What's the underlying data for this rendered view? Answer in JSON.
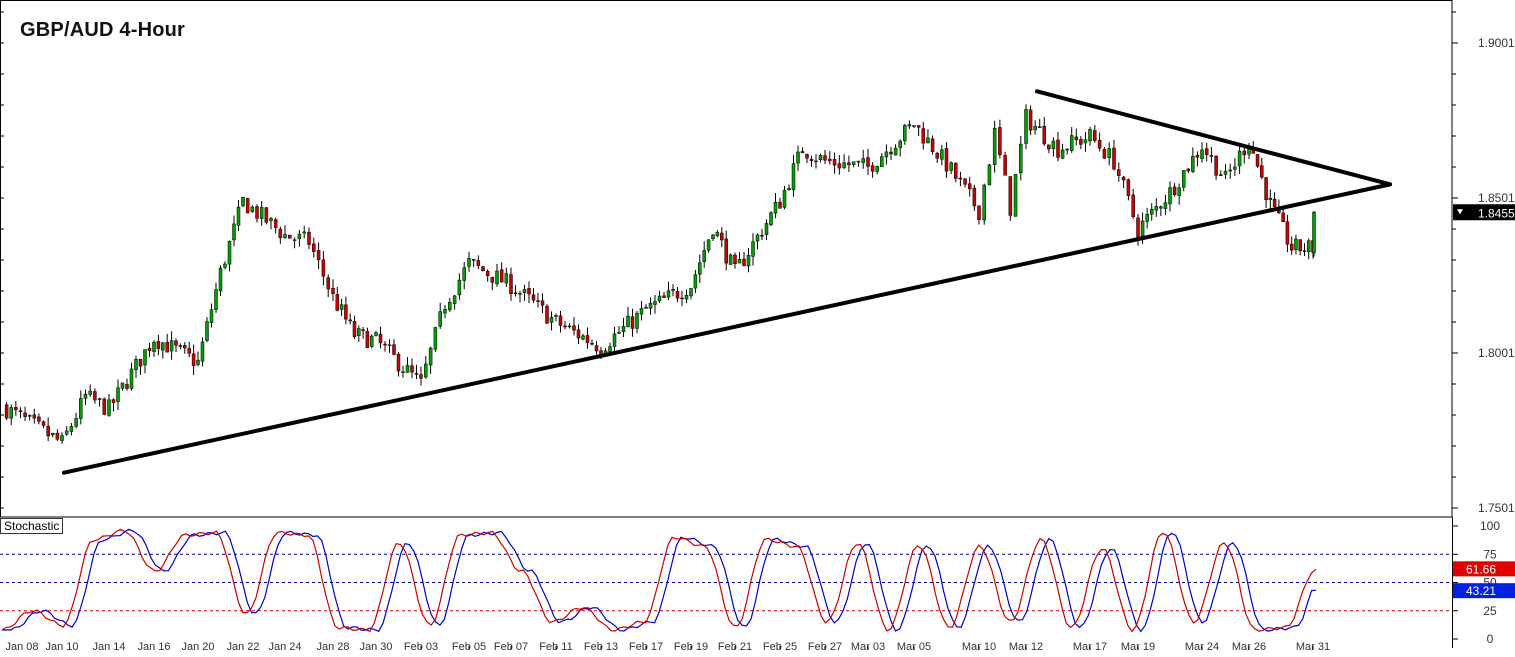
{
  "chart_data": [
    {
      "type": "candlestick",
      "title": "GBP/AUD 4-Hour",
      "xlabel": "",
      "ylabel": "",
      "ylim": [
        1.7501,
        1.9001
      ],
      "y_ticks": [
        "1.9001",
        "1.8501",
        "1.8001",
        "1.7501"
      ],
      "last_price": "1.8455",
      "x_ticks": [
        "Jan 08",
        "Jan 10",
        "Jan 14",
        "Jan 16",
        "Jan 20",
        "Jan 22",
        "Jan 24",
        "Jan 28",
        "Jan 30",
        "Feb 03",
        "Feb 05",
        "Feb 07",
        "Feb 11",
        "Feb 13",
        "Feb 17",
        "Feb 19",
        "Feb 21",
        "Feb 25",
        "Feb 27",
        "Mar 03",
        "Mar 05",
        "Mar 10",
        "Mar 12",
        "Mar 17",
        "Mar 19",
        "Mar 24",
        "Mar 26",
        "Mar 31"
      ],
      "price_path": [
        {
          "x": "Jan 08",
          "y": 1.783
        },
        {
          "x": "Jan 10",
          "y": 1.771
        },
        {
          "x": "Jan 10",
          "y": 1.786
        },
        {
          "x": "Jan 14",
          "y": 1.782
        },
        {
          "x": "Jan 16",
          "y": 1.805
        },
        {
          "x": "Jan 20",
          "y": 1.797
        },
        {
          "x": "Jan 20",
          "y": 1.826
        },
        {
          "x": "Jan 22",
          "y": 1.849
        },
        {
          "x": "Jan 24",
          "y": 1.838
        },
        {
          "x": "Jan 24",
          "y": 1.836
        },
        {
          "x": "Jan 28",
          "y": 1.818
        },
        {
          "x": "Jan 28",
          "y": 1.806
        },
        {
          "x": "Jan 30",
          "y": 1.804
        },
        {
          "x": "Feb 03",
          "y": 1.79
        },
        {
          "x": "Feb 03",
          "y": 1.816
        },
        {
          "x": "Feb 05",
          "y": 1.829
        },
        {
          "x": "Feb 07",
          "y": 1.822
        },
        {
          "x": "Feb 11",
          "y": 1.81
        },
        {
          "x": "Feb 13",
          "y": 1.802
        },
        {
          "x": "Feb 17",
          "y": 1.814
        },
        {
          "x": "Feb 19",
          "y": 1.822
        },
        {
          "x": "Feb 19",
          "y": 1.841
        },
        {
          "x": "Feb 21",
          "y": 1.826
        },
        {
          "x": "Feb 25",
          "y": 1.849
        },
        {
          "x": "Feb 25",
          "y": 1.866
        },
        {
          "x": "Feb 27",
          "y": 1.862
        },
        {
          "x": "Mar 03",
          "y": 1.86
        },
        {
          "x": "Mar 05",
          "y": 1.874
        },
        {
          "x": "Mar 05",
          "y": 1.861
        },
        {
          "x": "Mar 10",
          "y": 1.846
        },
        {
          "x": "Mar 10",
          "y": 1.871
        },
        {
          "x": "Mar 10",
          "y": 1.847
        },
        {
          "x": "Mar 12",
          "y": 1.876
        },
        {
          "x": "Mar 12",
          "y": 1.866
        },
        {
          "x": "Mar 17",
          "y": 1.87
        },
        {
          "x": "Mar 17",
          "y": 1.862
        },
        {
          "x": "Mar 19",
          "y": 1.84
        },
        {
          "x": "Mar 19",
          "y": 1.852
        },
        {
          "x": "Mar 24",
          "y": 1.867
        },
        {
          "x": "Mar 24",
          "y": 1.856
        },
        {
          "x": "Mar 26",
          "y": 1.869
        },
        {
          "x": "Mar 26",
          "y": 1.848
        },
        {
          "x": "Mar 26",
          "y": 1.834
        },
        {
          "x": "Mar 31",
          "y": 1.834
        },
        {
          "x": "Mar 31",
          "y": 1.8455
        }
      ],
      "trendlines": [
        {
          "name": "support",
          "from": {
            "x": "Jan 10",
            "y": 1.7615
          },
          "to": {
            "x": "after Mar 31",
            "y": 1.8545
          }
        },
        {
          "name": "resistance",
          "from": {
            "x": "Mar 12",
            "y": 1.8845
          },
          "to": {
            "x": "after Mar 31",
            "y": 1.8545
          }
        }
      ],
      "colors": {
        "up": "#00a000",
        "down": "#cc0000",
        "trendline": "#000000",
        "price_tag_bg": "#000000"
      }
    },
    {
      "type": "line",
      "title": "Stochastic",
      "ylim": [
        0,
        100
      ],
      "y_ticks": [
        "100",
        "75",
        "50",
        "25",
        "0"
      ],
      "reference_lines": [
        75,
        50,
        25
      ],
      "series": [
        {
          "name": "",
          "color": "#cc0000",
          "last": "61.66"
        },
        {
          "name": "",
          "color": "#0000cc",
          "last": "43.21"
        }
      ],
      "path": [
        8,
        25,
        12,
        88,
        96,
        60,
        92,
        94,
        22,
        94,
        92,
        10,
        8,
        85,
        12,
        92,
        94,
        60,
        15,
        28,
        8,
        15,
        90,
        82,
        10,
        88,
        82,
        15,
        85,
        8,
        83,
        10,
        82,
        15,
        88,
        10,
        80,
        8,
        95,
        15,
        85,
        8,
        10,
        62
      ]
    }
  ]
}
